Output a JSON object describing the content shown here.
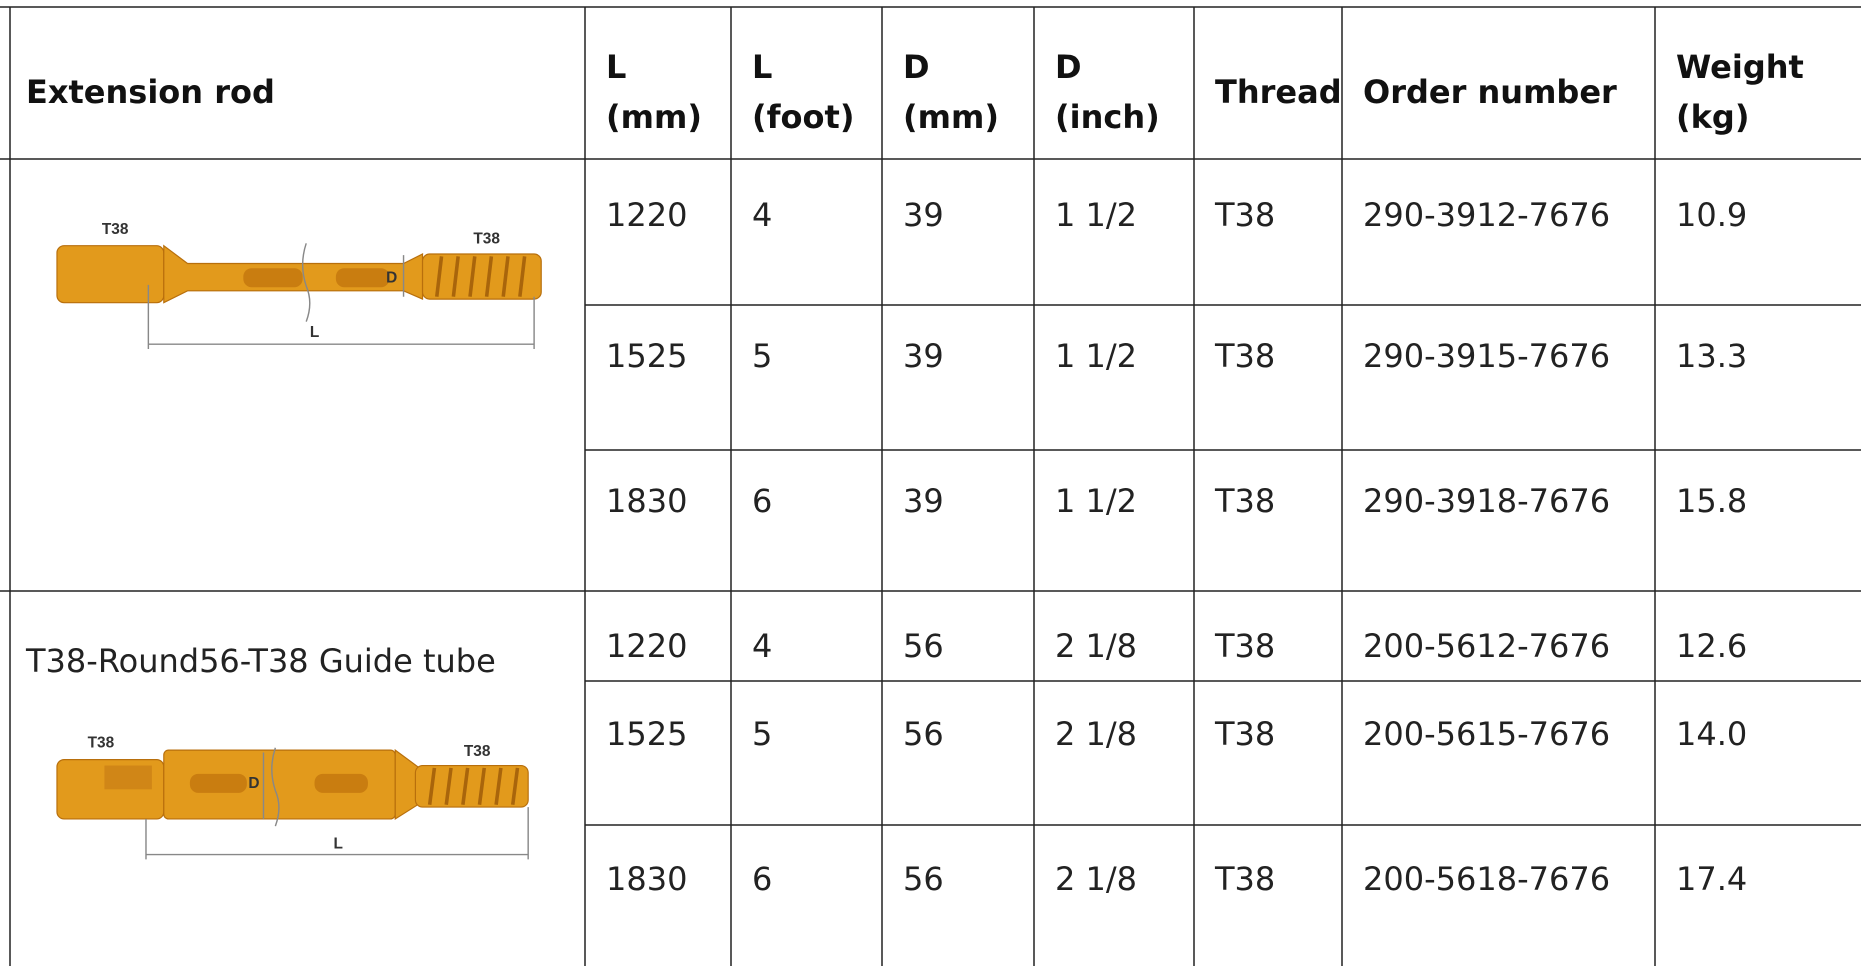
{
  "table": {
    "header": [
      [
        "Extension rod"
      ],
      [
        "L",
        "(mm)"
      ],
      [
        "L",
        "(foot)"
      ],
      [
        "D",
        "(mm)"
      ],
      [
        "D",
        "(inch)"
      ],
      [
        "Thread"
      ],
      [
        "Order number"
      ],
      [
        "Weight",
        "(kg)"
      ]
    ],
    "groups": [
      {
        "image_labels": [
          "T38",
          "T38",
          "D",
          "L"
        ],
        "rows": [
          [
            "1220",
            "4",
            "39",
            "1 1/2",
            "T38",
            "290-3912-7676",
            "10.9"
          ],
          [
            "1525",
            "5",
            "39",
            "1 1/2",
            "T38",
            "290-3915-7676",
            "13.3"
          ],
          [
            "1830",
            "6",
            "39",
            "1 1/2",
            "T38",
            "290-3918-7676",
            "15.8"
          ]
        ]
      },
      {
        "label": "T38-Round56-T38 Guide tube",
        "image_labels": [
          "T38",
          "T38",
          "D",
          "L"
        ],
        "rows": [
          [
            "1220",
            "4",
            "56",
            "2 1/8",
            "T38",
            "200-5612-7676",
            "12.6"
          ],
          [
            "1525",
            "5",
            "56",
            "2 1/8",
            "T38",
            "200-5615-7676",
            "14.0"
          ],
          [
            "1830",
            "6",
            "56",
            "2 1/8",
            "T38",
            "200-5618-7676",
            "17.4"
          ]
        ]
      }
    ]
  }
}
